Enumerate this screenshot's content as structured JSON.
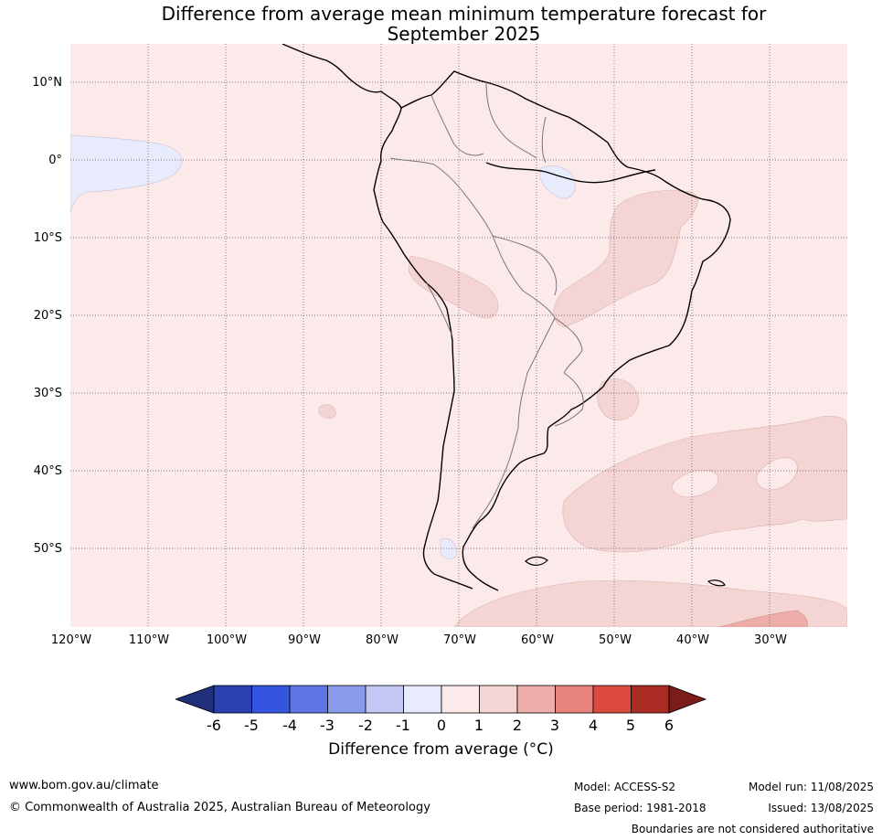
{
  "title": {
    "line1": "Difference from average mean minimum temperature forecast for",
    "line2": "September 2025"
  },
  "map": {
    "lat_labels": [
      "10°N",
      "0°",
      "10°S",
      "20°S",
      "30°S",
      "40°S",
      "50°S"
    ],
    "lon_labels": [
      "120°W",
      "110°W",
      "100°W",
      "90°W",
      "80°W",
      "70°W",
      "60°W",
      "50°W",
      "40°W",
      "30°W"
    ],
    "background_color": "#fbeae9",
    "lon_range": [
      -120,
      -20
    ],
    "lat_range": [
      -60,
      15
    ]
  },
  "colorbar": {
    "ticks": [
      "-6",
      "-5",
      "-4",
      "-3",
      "-2",
      "-1",
      "0",
      "1",
      "2",
      "3",
      "4",
      "5",
      "6"
    ],
    "colors": [
      "#1f2f7a",
      "#2a40b0",
      "#3355e0",
      "#5f75e6",
      "#8a9bec",
      "#c2c8f3",
      "#e8ebfb",
      "#fbeae9",
      "#f5d5d3",
      "#edaea9",
      "#e8837c",
      "#dc4a3e",
      "#aa2b22",
      "#7a1c18"
    ],
    "label": "Difference from average (°C)"
  },
  "footer": {
    "website": "www.bom.gov.au/climate",
    "copyright": "© Commonwealth of Australia 2025, Australian Bureau of Meteorology",
    "model": "Model: ACCESS-S2",
    "base_period": "Base period: 1981-2018",
    "model_run": "Model run: 11/08/2025",
    "issued": "Issued: 13/08/2025",
    "disclaimer": "Boundaries are not considered authoritative"
  }
}
